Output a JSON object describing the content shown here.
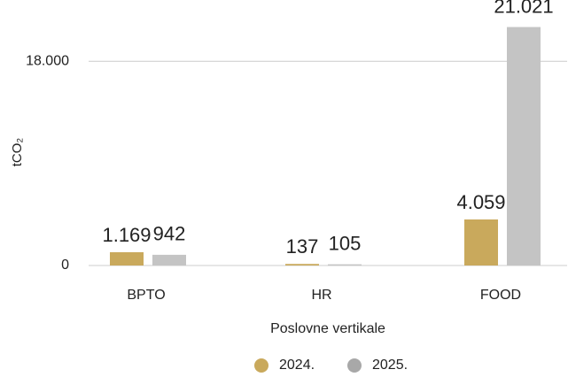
{
  "chart_data": {
    "type": "bar",
    "y_label": "tCO₂",
    "x_label": "Poslovne vertikale",
    "categories": [
      "BPTO",
      "HR",
      "FOOD"
    ],
    "series": [
      {
        "name": "2024.",
        "color": "#c9a95c",
        "values": [
          1169,
          137,
          4059
        ],
        "value_labels": [
          "1.169",
          "137",
          "4.059"
        ]
      },
      {
        "name": "2025.",
        "color": "#c4c4c4",
        "values": [
          942,
          105,
          21021
        ],
        "value_labels": [
          "942",
          "105",
          "21.021"
        ]
      }
    ],
    "ylim": [
      0,
      22000
    ],
    "yticks": [
      0,
      {
        "value": 18000,
        "label": "18.000"
      }
    ],
    "grid": true,
    "legend": "bottom"
  }
}
